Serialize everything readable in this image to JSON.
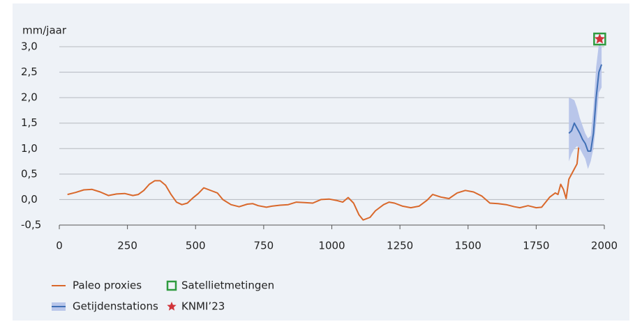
{
  "chart_data": {
    "type": "line",
    "y_label": "mm/jaar",
    "xlim": [
      0,
      2000
    ],
    "xticks": [
      0,
      250,
      500,
      750,
      1000,
      1250,
      1500,
      1750,
      2000
    ],
    "ylim": [
      -0.5,
      3.0
    ],
    "yticks": [
      {
        "value": -0.5,
        "label": "-0,5"
      },
      {
        "value": 0,
        "label": "0,0"
      },
      {
        "value": 0.5,
        "label": "0,5"
      },
      {
        "value": 1.0,
        "label": "1,0"
      },
      {
        "value": 1.5,
        "label": "1,5"
      },
      {
        "value": 2.0,
        "label": "2,0"
      },
      {
        "value": 2.5,
        "label": "2,5"
      },
      {
        "value": 3.0,
        "label": "3,0"
      }
    ],
    "grid": true,
    "series": [
      {
        "name": "Paleo proxies",
        "color": "#d9682b",
        "x": [
          30,
          60,
          90,
          120,
          150,
          180,
          210,
          240,
          270,
          290,
          310,
          330,
          350,
          370,
          390,
          410,
          430,
          450,
          470,
          490,
          510,
          530,
          560,
          580,
          600,
          630,
          660,
          690,
          710,
          730,
          760,
          780,
          810,
          840,
          870,
          900,
          930,
          960,
          990,
          1020,
          1040,
          1060,
          1080,
          1100,
          1115,
          1140,
          1160,
          1190,
          1210,
          1230,
          1260,
          1290,
          1320,
          1350,
          1370,
          1400,
          1430,
          1460,
          1490,
          1520,
          1550,
          1580,
          1610,
          1640,
          1670,
          1690,
          1720,
          1750,
          1770,
          1800,
          1820,
          1830,
          1840,
          1850,
          1860,
          1870,
          1890,
          1900,
          1910,
          1920,
          1930,
          1940,
          1950,
          1960
        ],
        "values": [
          0.1,
          0.14,
          0.19,
          0.2,
          0.15,
          0.08,
          0.11,
          0.12,
          0.08,
          0.1,
          0.18,
          0.3,
          0.37,
          0.37,
          0.28,
          0.1,
          -0.05,
          -0.1,
          -0.07,
          0.03,
          0.12,
          0.23,
          0.17,
          0.13,
          0,
          -0.1,
          -0.14,
          -0.09,
          -0.08,
          -0.12,
          -0.15,
          -0.13,
          -0.11,
          -0.1,
          -0.05,
          -0.06,
          -0.07,
          0,
          0.01,
          -0.02,
          -0.05,
          0.04,
          -0.07,
          -0.3,
          -0.4,
          -0.35,
          -0.22,
          -0.1,
          -0.05,
          -0.07,
          -0.13,
          -0.16,
          -0.13,
          -0.01,
          0.1,
          0.05,
          0.02,
          0.13,
          0.18,
          0.15,
          0.07,
          -0.07,
          -0.08,
          -0.1,
          -0.14,
          -0.16,
          -0.12,
          -0.16,
          -0.15,
          0.05,
          0.13,
          0.1,
          0.3,
          0.2,
          0.02,
          0.4,
          0.6,
          0.7,
          1.25,
          1.05,
          1.0,
          1.1,
          0.98,
          1.0
        ]
      },
      {
        "name": "Getijdenstations",
        "color": "#3f6fb5",
        "band_color": "#b9c6ea",
        "x": [
          1870,
          1880,
          1890,
          1900,
          1910,
          1920,
          1930,
          1940,
          1950,
          1960,
          1970,
          1980,
          1990
        ],
        "values": [
          1.3,
          1.35,
          1.5,
          1.4,
          1.3,
          1.18,
          1.1,
          0.95,
          0.95,
          1.3,
          2.0,
          2.5,
          2.65
        ],
        "upper": [
          2.0,
          1.98,
          1.95,
          1.8,
          1.6,
          1.45,
          1.3,
          1.2,
          1.25,
          1.8,
          2.6,
          3.05,
          3.0
        ],
        "lower": [
          0.75,
          0.9,
          1.0,
          1.05,
          1.0,
          0.9,
          0.8,
          0.6,
          0.75,
          1.0,
          1.5,
          2.1,
          2.2
        ]
      },
      {
        "name": "Satellietmetingen",
        "color": "#2e9b3f",
        "marker": "square",
        "x": [
          1983
        ],
        "values": [
          3.15
        ]
      },
      {
        "name": "KNMI’23",
        "color": "#d1343a",
        "marker": "star",
        "x": [
          1983
        ],
        "values": [
          3.15
        ]
      }
    ]
  }
}
